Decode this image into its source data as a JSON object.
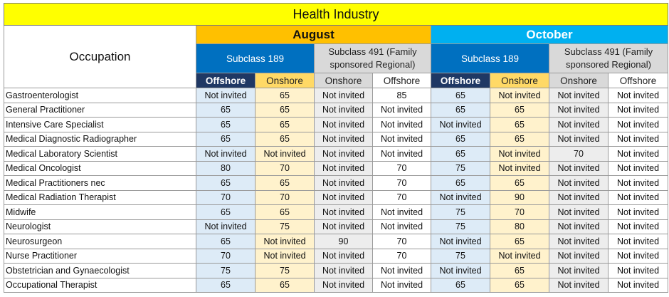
{
  "title": "Health Industry",
  "occupation_header": "Occupation",
  "months": [
    "August",
    "October"
  ],
  "subclass_189": "Subclass 189",
  "subclass_491": "Subclass 491 (Family sponsored Regional)",
  "column_labels": [
    "Offshore",
    "Onshore",
    "Onshore",
    "Offshore",
    "Offshore",
    "Onshore",
    "Onshore",
    "Offshore"
  ],
  "colors": {
    "title_bg": "#ffff00",
    "august_bg": "#ffc000",
    "october_bg": "#00b0f0",
    "subclass_189_bg": "#0070c0",
    "subclass_491_bg": "#d9d9d9",
    "offshore_label_bg": "#1f3864",
    "onshore_label_bg": "#ffd966",
    "cell_blue": "#ddebf7",
    "cell_yellow": "#fff2cc",
    "cell_grey": "#ededed"
  },
  "rows": [
    {
      "occupation": "Gastroenterologist",
      "values": [
        "Not invited",
        "65",
        "Not invited",
        "85",
        "65",
        "Not invited",
        "Not invited",
        "Not invited"
      ]
    },
    {
      "occupation": "General Practitioner",
      "values": [
        "65",
        "65",
        "Not invited",
        "Not invited",
        "65",
        "65",
        "Not invited",
        "Not invited"
      ]
    },
    {
      "occupation": "Intensive Care Specialist",
      "values": [
        "65",
        "65",
        "Not invited",
        "Not invited",
        "Not invited",
        "65",
        "Not invited",
        "Not invited"
      ]
    },
    {
      "occupation": "Medical Diagnostic Radiographer",
      "values": [
        "65",
        "65",
        "Not invited",
        "Not invited",
        "65",
        "65",
        "Not invited",
        "Not invited"
      ]
    },
    {
      "occupation": "Medical Laboratory Scientist",
      "values": [
        "Not invited",
        "Not invited",
        "Not invited",
        "Not invited",
        "65",
        "Not invited",
        "70",
        "Not invited"
      ]
    },
    {
      "occupation": "Medical Oncologist",
      "values": [
        "80",
        "70",
        "Not invited",
        "70",
        "75",
        "Not invited",
        "Not invited",
        "Not invited"
      ]
    },
    {
      "occupation": "Medical Practitioners nec",
      "values": [
        "65",
        "65",
        "Not invited",
        "70",
        "65",
        "65",
        "Not invited",
        "Not invited"
      ]
    },
    {
      "occupation": "Medical Radiation Therapist",
      "values": [
        "70",
        "70",
        "Not invited",
        "70",
        "Not invited",
        "90",
        "Not invited",
        "Not invited"
      ]
    },
    {
      "occupation": "Midwife",
      "values": [
        "65",
        "65",
        "Not invited",
        "Not invited",
        "75",
        "70",
        "Not invited",
        "Not invited"
      ]
    },
    {
      "occupation": "Neurologist",
      "values": [
        "Not invited",
        "75",
        "Not invited",
        "Not invited",
        "75",
        "80",
        "Not invited",
        "Not invited"
      ]
    },
    {
      "occupation": "Neurosurgeon",
      "values": [
        "65",
        "Not invited",
        "90",
        "70",
        "Not invited",
        "65",
        "Not invited",
        "Not invited"
      ]
    },
    {
      "occupation": "Nurse Practitioner",
      "values": [
        "70",
        "Not invited",
        "Not invited",
        "70",
        "75",
        "Not invited",
        "Not invited",
        "Not invited"
      ]
    },
    {
      "occupation": "Obstetrician and Gynaecologist",
      "values": [
        "75",
        "75",
        "Not invited",
        "Not invited",
        "Not invited",
        "65",
        "Not invited",
        "Not invited"
      ]
    },
    {
      "occupation": "Occupational Therapist",
      "values": [
        "65",
        "65",
        "Not invited",
        "Not invited",
        "65",
        "65",
        "Not invited",
        "Not invited"
      ]
    }
  ]
}
